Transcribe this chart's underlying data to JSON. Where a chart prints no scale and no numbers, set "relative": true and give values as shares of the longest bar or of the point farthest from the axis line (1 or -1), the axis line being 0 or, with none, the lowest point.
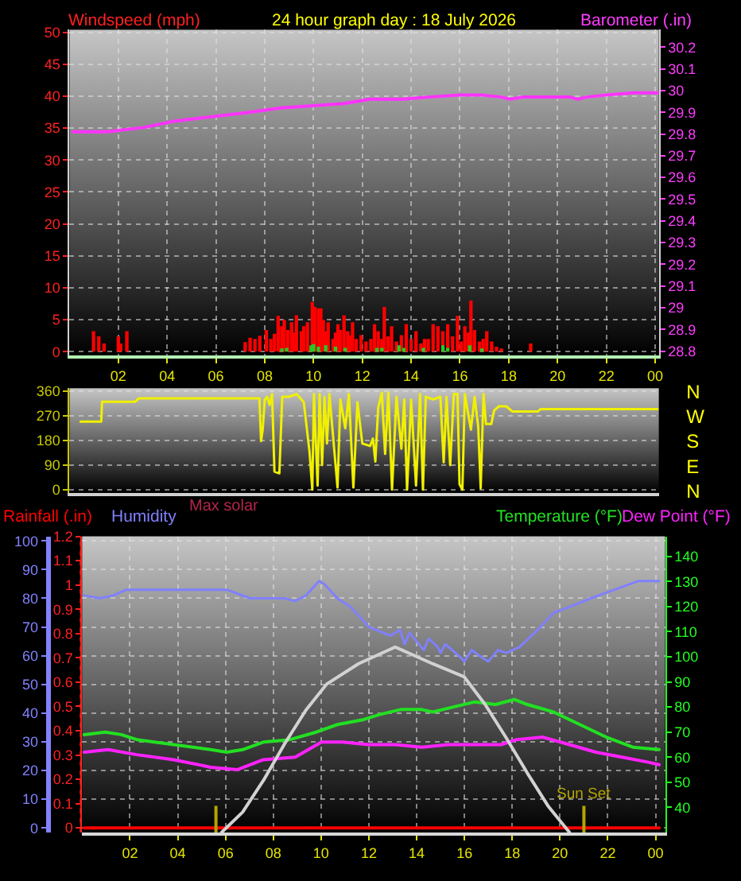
{
  "chart_data": [
    {
      "type": "bar",
      "title": "24 hour graph day : 18 July 2026",
      "ylabel": "Windspeed (mph)",
      "y2label": "Barometer (.in)",
      "xlim": [
        "2026-07-18T00:00",
        "2026-07-19T00:09"
      ],
      "xticks": [
        {
          "value": "2026-07-18T02:00",
          "label": "02"
        },
        {
          "value": "2026-07-18T04:00",
          "label": "04"
        },
        {
          "value": "2026-07-18T06:00",
          "label": "06"
        },
        {
          "value": "2026-07-18T08:00",
          "label": "08"
        },
        {
          "value": "2026-07-18T10:00",
          "label": "10"
        },
        {
          "value": "2026-07-18T12:00",
          "label": "12"
        },
        {
          "value": "2026-07-18T14:00",
          "label": "14"
        },
        {
          "value": "2026-07-18T16:00",
          "label": "16"
        },
        {
          "value": "2026-07-18T18:00",
          "label": "18"
        },
        {
          "value": "2026-07-18T20:00",
          "label": "20"
        },
        {
          "value": "2026-07-18T22:00",
          "label": "22"
        },
        {
          "value": "2026-07-19T00:00",
          "label": "00"
        }
      ],
      "ylim": [
        -0.6,
        50.4
      ],
      "yticks": [
        0,
        5,
        10,
        15,
        20,
        25,
        30,
        35,
        40,
        45,
        50
      ],
      "y2lim": [
        28.78,
        30.28
      ],
      "y2ticks": [
        28.8,
        28.9,
        29,
        29.1,
        29.2,
        29.3,
        29.4,
        29.5,
        29.6,
        29.7,
        29.8,
        29.9,
        30,
        30.1,
        30.2
      ],
      "grid": true,
      "series": [
        {
          "color": "#ff0000",
          "x": [
            "2026-07-18T00:59",
            "2026-07-18T01:12",
            "2026-07-18T01:25",
            "2026-07-18T02:00",
            "2026-07-18T02:06",
            "2026-07-18T02:21",
            "2026-07-18T07:12",
            "2026-07-18T07:24",
            "2026-07-18T07:36",
            "2026-07-18T07:48",
            "2026-07-18T08:04",
            "2026-07-18T08:15",
            "2026-07-18T08:24",
            "2026-07-18T08:33",
            "2026-07-18T08:42",
            "2026-07-18T08:48",
            "2026-07-18T08:57",
            "2026-07-18T09:06",
            "2026-07-18T09:12",
            "2026-07-18T09:18",
            "2026-07-18T09:30",
            "2026-07-18T09:36",
            "2026-07-18T09:45",
            "2026-07-18T09:57",
            "2026-07-18T10:03",
            "2026-07-18T10:12",
            "2026-07-18T10:18",
            "2026-07-18T10:24",
            "2026-07-18T10:30",
            "2026-07-18T10:36",
            "2026-07-18T10:48",
            "2026-07-18T10:54",
            "2026-07-18T11:00",
            "2026-07-18T11:06",
            "2026-07-18T11:15",
            "2026-07-18T11:24",
            "2026-07-18T11:30",
            "2026-07-18T11:36",
            "2026-07-18T11:45",
            "2026-07-18T11:57",
            "2026-07-18T12:09",
            "2026-07-18T12:21",
            "2026-07-18T12:30",
            "2026-07-18T12:39",
            "2026-07-18T12:48",
            "2026-07-18T12:54",
            "2026-07-18T13:03",
            "2026-07-18T13:12",
            "2026-07-18T13:24",
            "2026-07-18T13:36",
            "2026-07-18T13:48",
            "2026-07-18T14:00",
            "2026-07-18T14:12",
            "2026-07-18T14:24",
            "2026-07-18T14:33",
            "2026-07-18T14:42",
            "2026-07-18T14:54",
            "2026-07-18T15:06",
            "2026-07-18T15:18",
            "2026-07-18T15:30",
            "2026-07-18T15:42",
            "2026-07-18T15:54",
            "2026-07-18T16:03",
            "2026-07-18T16:12",
            "2026-07-18T16:21",
            "2026-07-18T16:27",
            "2026-07-18T16:36",
            "2026-07-18T16:48",
            "2026-07-18T16:57",
            "2026-07-18T17:06",
            "2026-07-18T17:18",
            "2026-07-18T17:30",
            "2026-07-18T17:42",
            "2026-07-18T18:54"
          ],
          "values": [
            3.2,
            2.4,
            1.3,
            2.4,
            1.3,
            3.2,
            1.5,
            2.2,
            2.0,
            2.5,
            3.4,
            2.0,
            2.8,
            5.6,
            4.0,
            5.0,
            3.4,
            4.6,
            3.0,
            5.7,
            3.2,
            4.0,
            4.6,
            7.8,
            7.0,
            6.8,
            6.8,
            5.0,
            3.2,
            4.6,
            2.0,
            3.0,
            4.3,
            3.4,
            5.7,
            3.2,
            2.5,
            4.6,
            2.0,
            2.6,
            1.6,
            2.0,
            4.3,
            3.2,
            2.0,
            7.0,
            2.4,
            4.0,
            1.6,
            2.6,
            4.3,
            2.0,
            3.2,
            1.3,
            2.0,
            2.0,
            4.3,
            4.0,
            3.2,
            4.3,
            2.4,
            5.6,
            1.6,
            4.0,
            3.0,
            8.0,
            3.4,
            1.6,
            2.0,
            3.2,
            1.6,
            0.8,
            0.5,
            1.3
          ]
        },
        {
          "color": "#22cc22",
          "x": [
            "2026-07-18T08:42",
            "2026-07-18T08:54",
            "2026-07-18T09:54",
            "2026-07-18T10:00",
            "2026-07-18T10:12",
            "2026-07-18T10:30",
            "2026-07-18T10:54",
            "2026-07-18T11:18",
            "2026-07-18T12:36",
            "2026-07-18T12:48",
            "2026-07-18T13:30",
            "2026-07-18T13:42",
            "2026-07-18T14:30",
            "2026-07-18T15:18",
            "2026-07-18T15:30",
            "2026-07-18T16:24",
            "2026-07-18T16:54"
          ],
          "values": [
            0.5,
            0.6,
            1.0,
            1.2,
            0.8,
            1.0,
            0.8,
            0.6,
            0.6,
            0.6,
            1.0,
            0.6,
            0.6,
            1.0,
            0.6,
            1.0,
            0.5
          ]
        },
        {
          "type": "line",
          "axis": "y2",
          "color": "#ff33ff",
          "x": [
            "2026-07-18T00:08",
            "2026-07-18T01:32",
            "2026-07-18T03:02",
            "2026-07-18T04:20",
            "2026-07-18T05:51",
            "2026-07-18T07:22",
            "2026-07-18T08:39",
            "2026-07-18T09:57",
            "2026-07-18T11:14",
            "2026-07-18T12:19",
            "2026-07-18T13:37",
            "2026-07-18T14:41",
            "2026-07-18T15:59",
            "2026-07-18T16:51",
            "2026-07-18T17:43",
            "2026-07-18T18:02",
            "2026-07-18T18:35",
            "2026-07-18T20:31",
            "2026-07-18T20:50",
            "2026-07-18T21:10",
            "2026-07-18T22:02",
            "2026-07-18T23:06",
            "2026-07-18T23:39",
            "2026-07-19T00:08"
          ],
          "values": [
            29.81,
            29.81,
            29.83,
            29.86,
            29.88,
            29.9,
            29.92,
            29.93,
            29.94,
            29.96,
            29.96,
            29.97,
            29.98,
            29.98,
            29.97,
            29.96,
            29.97,
            29.97,
            29.96,
            29.97,
            29.98,
            29.99,
            29.99,
            29.99
          ]
        }
      ]
    },
    {
      "type": "line",
      "xlim": [
        "2026-07-18T00:00",
        "2026-07-19T00:09"
      ],
      "ylim": [
        -11,
        371
      ],
      "yticks": [
        0,
        90,
        180,
        270,
        360
      ],
      "y2_categories": [
        "N",
        "W",
        "S",
        "E",
        "N"
      ],
      "tick_labels": "y",
      "grid": "y",
      "series": [
        {
          "color": "#f0f000",
          "x": [
            "2026-07-18T00:27",
            "2026-07-18T01:18",
            "2026-07-18T01:20",
            "2026-07-18T02:42",
            "2026-07-18T02:50",
            "2026-07-18T07:47",
            "2026-07-18T07:51",
            "2026-07-18T07:55",
            "2026-07-18T08:00",
            "2026-07-18T08:06",
            "2026-07-18T08:12",
            "2026-07-18T08:18",
            "2026-07-18T08:24",
            "2026-07-18T08:36",
            "2026-07-18T08:43",
            "2026-07-18T09:00",
            "2026-07-18T09:18",
            "2026-07-18T09:36",
            "2026-07-18T09:50",
            "2026-07-18T09:57",
            "2026-07-18T10:01",
            "2026-07-18T10:10",
            "2026-07-18T10:15",
            "2026-07-18T10:21",
            "2026-07-18T10:27",
            "2026-07-18T10:33",
            "2026-07-18T10:39",
            "2026-07-18T10:59",
            "2026-07-18T11:06",
            "2026-07-18T11:18",
            "2026-07-18T11:27",
            "2026-07-18T11:38",
            "2026-07-18T11:48",
            "2026-07-18T12:00",
            "2026-07-18T12:19",
            "2026-07-18T12:26",
            "2026-07-18T12:32",
            "2026-07-18T12:39",
            "2026-07-18T12:48",
            "2026-07-18T12:56",
            "2026-07-18T13:04",
            "2026-07-18T13:13",
            "2026-07-18T13:24",
            "2026-07-18T13:36",
            "2026-07-18T13:43",
            "2026-07-18T13:50",
            "2026-07-18T14:00",
            "2026-07-18T14:12",
            "2026-07-18T14:22",
            "2026-07-18T14:29",
            "2026-07-18T14:36",
            "2026-07-18T14:54",
            "2026-07-18T15:12",
            "2026-07-18T15:20",
            "2026-07-18T15:27",
            "2026-07-18T15:36",
            "2026-07-18T15:45",
            "2026-07-18T15:54",
            "2026-07-18T15:59",
            "2026-07-18T16:06",
            "2026-07-18T16:12",
            "2026-07-18T16:27",
            "2026-07-18T16:36",
            "2026-07-18T16:45",
            "2026-07-18T16:51",
            "2026-07-18T16:58",
            "2026-07-18T17:04",
            "2026-07-18T17:17",
            "2026-07-18T17:24",
            "2026-07-18T17:36",
            "2026-07-18T17:54",
            "2026-07-18T18:09",
            "2026-07-18T19:12",
            "2026-07-18T19:18",
            "2026-07-19T00:06"
          ],
          "values": [
            249,
            249,
            322,
            322,
            334,
            334,
            178,
            220,
            330,
            340,
            310,
            350,
            66,
            60,
            340,
            340,
            350,
            320,
            141,
            0,
            350,
            15,
            350,
            90,
            340,
            169,
            350,
            8,
            330,
            225,
            350,
            8,
            320,
            169,
            160,
            187,
            103,
            300,
            355,
            131,
            356,
            0,
            340,
            150,
            330,
            0,
            330,
            15,
            350,
            0,
            340,
            330,
            340,
            100,
            340,
            90,
            350,
            350,
            20,
            0,
            350,
            220,
            340,
            230,
            5,
            350,
            240,
            240,
            290,
            305,
            305,
            286,
            286,
            295,
            295
          ]
        }
      ]
    },
    {
      "type": "line",
      "legend": "top",
      "xlim": [
        "2026-07-18T00:00",
        "2026-07-19T00:24"
      ],
      "xticks": [
        {
          "value": "2026-07-18T02:00",
          "label": "02"
        },
        {
          "value": "2026-07-18T04:00",
          "label": "04"
        },
        {
          "value": "2026-07-18T06:00",
          "label": "06"
        },
        {
          "value": "2026-07-18T08:00",
          "label": "08"
        },
        {
          "value": "2026-07-18T10:00",
          "label": "10"
        },
        {
          "value": "2026-07-18T12:00",
          "label": "12"
        },
        {
          "value": "2026-07-18T14:00",
          "label": "14"
        },
        {
          "value": "2026-07-18T16:00",
          "label": "16"
        },
        {
          "value": "2026-07-18T18:00",
          "label": "18"
        },
        {
          "value": "2026-07-18T20:00",
          "label": "20"
        },
        {
          "value": "2026-07-18T22:00",
          "label": "22"
        },
        {
          "value": "2026-07-19T00:00",
          "label": "00"
        }
      ],
      "ylim": [
        -1.6,
        101.6
      ],
      "yticks": [
        0,
        10,
        20,
        30,
        40,
        50,
        60,
        70,
        80,
        90,
        100
      ],
      "y2lim": [
        -0.019,
        1.2
      ],
      "y2ticks": [
        0,
        0.1,
        0.2,
        0.3,
        0.4,
        0.5,
        0.6,
        0.7,
        0.8,
        0.9,
        1,
        1.1,
        1.2
      ],
      "y3lim": [
        30,
        148
      ],
      "y3ticks": [
        40,
        50,
        60,
        70,
        80,
        90,
        100,
        110,
        120,
        130,
        140
      ],
      "grid": true,
      "ref_lines": [
        {
          "axis": "x",
          "value": "2026-07-18T05:36",
          "color": "#b4a400"
        },
        {
          "axis": "x",
          "value": "2026-07-18T21:00",
          "label": "Sun Set",
          "color": "#b4a400"
        }
      ],
      "series": [
        {
          "name": "Rainfall (.in)",
          "axis": "y2",
          "color": "#ff0000",
          "x": [
            "2026-07-18T00:05",
            "2026-07-19T00:09"
          ],
          "values": [
            0,
            0
          ]
        },
        {
          "name": "Humidity",
          "color": "#8080ff",
          "x": [
            "2026-07-18T00:05",
            "2026-07-18T00:45",
            "2026-07-18T01:18",
            "2026-07-18T01:51",
            "2026-07-18T03:11",
            "2026-07-18T06:03",
            "2026-07-18T07:02",
            "2026-07-18T08:29",
            "2026-07-18T08:55",
            "2026-07-18T09:22",
            "2026-07-18T09:55",
            "2026-07-18T10:08",
            "2026-07-18T10:41",
            "2026-07-18T11:14",
            "2026-07-18T12:00",
            "2026-07-18T12:54",
            "2026-07-18T13:18",
            "2026-07-18T13:30",
            "2026-07-18T13:42",
            "2026-07-18T14:00",
            "2026-07-18T14:18",
            "2026-07-18T14:30",
            "2026-07-18T14:53",
            "2026-07-18T15:00",
            "2026-07-18T15:12",
            "2026-07-18T15:46",
            "2026-07-18T16:00",
            "2026-07-18T16:18",
            "2026-07-18T16:38",
            "2026-07-18T17:00",
            "2026-07-18T17:24",
            "2026-07-18T17:45",
            "2026-07-18T18:18",
            "2026-07-18T19:04",
            "2026-07-18T19:44",
            "2026-07-18T20:24",
            "2026-07-18T21:17",
            "2026-07-18T22:36",
            "2026-07-18T23:16",
            "2026-07-19T00:09"
          ],
          "values": [
            81,
            80,
            81,
            83,
            83,
            83,
            80,
            80,
            79,
            81,
            86,
            85,
            80,
            77,
            70,
            67,
            69,
            64,
            68,
            65,
            62,
            66,
            63,
            61,
            64,
            60,
            58,
            62,
            60,
            58,
            62,
            61,
            63,
            69,
            75,
            77,
            80,
            84,
            86,
            86
          ]
        },
        {
          "name": "Temperature (°F)",
          "axis": "y3",
          "color": "#22e022",
          "x": [
            "2026-07-18T00:05",
            "2026-07-18T00:58",
            "2026-07-18T01:38",
            "2026-07-18T02:17",
            "2026-07-18T03:50",
            "2026-07-18T05:23",
            "2026-07-18T06:03",
            "2026-07-18T06:43",
            "2026-07-18T07:35",
            "2026-07-18T08:42",
            "2026-07-18T09:48",
            "2026-07-18T10:41",
            "2026-07-18T11:47",
            "2026-07-18T12:27",
            "2026-07-18T13:20",
            "2026-07-18T14:13",
            "2026-07-18T14:40",
            "2026-07-18T15:32",
            "2026-07-18T16:25",
            "2026-07-18T17:18",
            "2026-07-18T18:05",
            "2026-07-18T18:38",
            "2026-07-18T19:44",
            "2026-07-18T20:50",
            "2026-07-18T21:56",
            "2026-07-18T23:03",
            "2026-07-19T00:09"
          ],
          "values": [
            69,
            70,
            69,
            67,
            65,
            63,
            62,
            63,
            66,
            67,
            70,
            73,
            75,
            77,
            79,
            79,
            78,
            80,
            82,
            81,
            83,
            81,
            78,
            73,
            68,
            64,
            63
          ]
        },
        {
          "name": "Dew Point (°F)",
          "axis": "y3",
          "color": "#ff22ff",
          "x": [
            "2026-07-18T00:05",
            "2026-07-18T01:05",
            "2026-07-18T02:17",
            "2026-07-18T03:50",
            "2026-07-18T05:23",
            "2026-07-18T06:29",
            "2026-07-18T07:35",
            "2026-07-18T08:55",
            "2026-07-18T10:01",
            "2026-07-18T10:54",
            "2026-07-18T12:00",
            "2026-07-18T13:07",
            "2026-07-18T14:13",
            "2026-07-18T15:19",
            "2026-07-18T16:25",
            "2026-07-18T17:32",
            "2026-07-18T18:11",
            "2026-07-18T19:17",
            "2026-07-18T20:24",
            "2026-07-18T21:30",
            "2026-07-18T22:36",
            "2026-07-18T23:42",
            "2026-07-19T00:09"
          ],
          "values": [
            62,
            63,
            61,
            59,
            56,
            55,
            59,
            60,
            66,
            66,
            65,
            65,
            64,
            65,
            65,
            65,
            67,
            68,
            65,
            62,
            60,
            58,
            57
          ]
        }
      ]
    },
    {
      "type": "line",
      "title": "Max solar",
      "relative": true,
      "xlim": [
        "2026-07-18T00:00",
        "2026-07-19T00:24"
      ],
      "tick_labels": false,
      "series": [
        {
          "color": "#d2d2d2",
          "x": [
            "2026-07-18T05:50",
            "2026-07-18T06:43",
            "2026-07-18T07:35",
            "2026-07-18T08:29",
            "2026-07-18T09:22",
            "2026-07-18T10:14",
            "2026-07-18T11:34",
            "2026-07-18T13:06",
            "2026-07-18T14:40",
            "2026-07-18T15:59",
            "2026-07-18T16:52",
            "2026-07-18T17:45",
            "2026-07-18T18:38",
            "2026-07-18T19:31",
            "2026-07-18T20:24"
          ],
          "values": [
            0,
            0.11,
            0.28,
            0.48,
            0.66,
            0.8,
            0.91,
            1,
            0.91,
            0.84,
            0.69,
            0.51,
            0.32,
            0.14,
            0
          ]
        }
      ]
    }
  ]
}
